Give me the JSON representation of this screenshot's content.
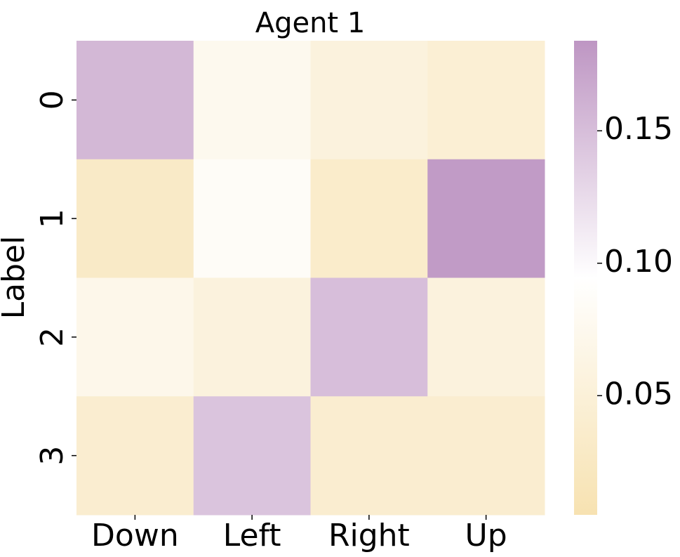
{
  "chart_data": {
    "type": "heatmap",
    "title": "Agent 1",
    "ylabel": "Label",
    "x_categories": [
      "Down",
      "Left",
      "Right",
      "Up"
    ],
    "y_categories": [
      "0",
      "1",
      "2",
      "3"
    ],
    "values": [
      [
        0.155,
        0.075,
        0.055,
        0.045
      ],
      [
        0.03,
        0.085,
        0.035,
        0.18
      ],
      [
        0.07,
        0.055,
        0.15,
        0.055
      ],
      [
        0.04,
        0.145,
        0.04,
        0.04
      ]
    ],
    "colormap": [
      "#f7e2b1",
      "#ffffff",
      "#be96c3"
    ],
    "clim": [
      0.005,
      0.184
    ],
    "cticks": [
      0.05,
      {
        "value": 0.1,
        "label": "0.10"
      },
      0.15
    ]
  }
}
